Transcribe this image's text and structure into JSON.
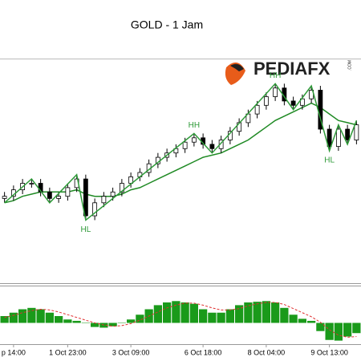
{
  "chart_data": [
    {
      "type": "candlestick",
      "title": "GOLD - 1 Jam",
      "watermark": "PEDIAFX",
      "watermark_suffix": ".COM",
      "categories": [
        null,
        "p 14:00",
        null,
        null,
        null,
        null,
        null,
        "1 Oct 23:00",
        null,
        null,
        null,
        null,
        null,
        null,
        "3 Oct 09:00",
        null,
        null,
        null,
        null,
        null,
        null,
        null,
        "6 Oct 18:00",
        null,
        null,
        null,
        null,
        null,
        null,
        "8 Oct 04:00",
        null,
        null,
        null,
        null,
        null,
        null,
        "9 Oct 13:00",
        null,
        null,
        null
      ],
      "open": [
        38,
        39,
        42,
        45,
        45,
        41,
        38,
        39,
        43,
        47,
        30,
        36,
        39,
        41,
        45,
        48,
        50,
        54,
        57,
        59,
        61,
        64,
        66,
        63,
        61,
        65,
        69,
        73,
        77,
        81,
        85,
        89,
        83,
        81,
        84,
        88,
        70,
        62,
        70,
        65
      ],
      "high": [
        41,
        44,
        47,
        47,
        47,
        43,
        41,
        45,
        49,
        49,
        38,
        41,
        43,
        47,
        50,
        52,
        56,
        59,
        61,
        63,
        66,
        68,
        68,
        65,
        67,
        71,
        75,
        79,
        83,
        87,
        91,
        91,
        85,
        86,
        90,
        90,
        72,
        72,
        72,
        74
      ],
      "low": [
        36,
        37,
        40,
        43,
        39,
        36,
        36,
        37,
        41,
        28,
        28,
        34,
        37,
        39,
        43,
        46,
        48,
        52,
        55,
        57,
        59,
        62,
        61,
        59,
        59,
        63,
        67,
        71,
        75,
        79,
        83,
        81,
        79,
        79,
        82,
        68,
        60,
        60,
        63,
        63
      ],
      "close": [
        39,
        42,
        45,
        45,
        41,
        38,
        39,
        43,
        47,
        30,
        36,
        39,
        41,
        45,
        48,
        50,
        54,
        57,
        59,
        61,
        64,
        66,
        63,
        61,
        65,
        69,
        73,
        77,
        81,
        85,
        89,
        83,
        81,
        84,
        88,
        70,
        62,
        70,
        65,
        72
      ],
      "candle_colors": {
        "up": "#ffffff",
        "down": "#000000"
      },
      "moving_average": {
        "color": "#1f8a24",
        "values": [
          36,
          37,
          39,
          40,
          41,
          41,
          41,
          41,
          42,
          40,
          39,
          39,
          39,
          40,
          42,
          43,
          45,
          47,
          49,
          51,
          53,
          55,
          57,
          58,
          59,
          61,
          63,
          65,
          68,
          71,
          74,
          76,
          78,
          80,
          82,
          80,
          77,
          74,
          73,
          72
        ]
      },
      "zigzag": {
        "color": "#2e9a38",
        "x": [
          0,
          3,
          5,
          8,
          9,
          21,
          23,
          30,
          32,
          34,
          36,
          37,
          38,
          39
        ],
        "values": [
          36,
          47,
          36,
          49,
          28,
          68,
          59,
          91,
          79,
          90,
          60,
          72,
          63,
          74
        ]
      },
      "annotations": [
        {
          "text": "HL",
          "point": 4
        },
        {
          "text": "HH",
          "point": 5
        },
        {
          "text": "HH",
          "point": 7
        },
        {
          "text": "HL",
          "point": 10
        }
      ],
      "ylim": [
        0,
        100
      ]
    },
    {
      "type": "histogram-oscillator",
      "color": "#1a9a1a",
      "signal_color": "#e03030",
      "values": [
        1,
        1.5,
        2,
        2.2,
        2,
        1.5,
        1,
        0.5,
        0.3,
        0,
        -0.6,
        -0.7,
        -0.5,
        0,
        0.5,
        1.2,
        2,
        2.6,
        3,
        3.2,
        3,
        2.8,
        2,
        1.5,
        1.5,
        2,
        2.6,
        3,
        3.1,
        3.2,
        3,
        2.2,
        1.2,
        0.6,
        0.3,
        -1.2,
        -2.5,
        -2.6,
        -2,
        -1.5
      ],
      "signal": [
        0.8,
        1.1,
        1.5,
        1.8,
        2,
        1.9,
        1.6,
        1.2,
        0.8,
        0.4,
        0,
        -0.3,
        -0.5,
        -0.4,
        -0.1,
        0.4,
        1,
        1.6,
        2.2,
        2.6,
        2.9,
        2.9,
        2.6,
        2.2,
        1.9,
        1.9,
        2.1,
        2.5,
        2.8,
        3,
        3,
        2.7,
        2.1,
        1.5,
        0.9,
        0.1,
        -1,
        -1.8,
        -2.1,
        -2
      ],
      "ylim": [
        -3,
        5
      ]
    }
  ]
}
